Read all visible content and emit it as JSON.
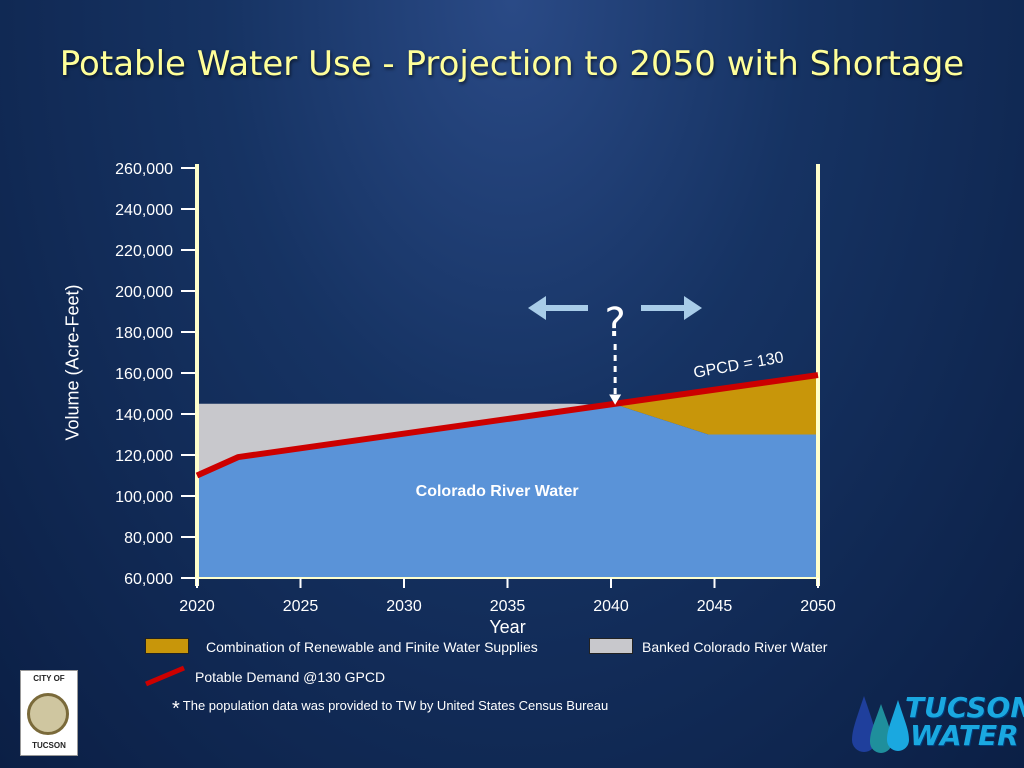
{
  "title": "Potable Water Use - Projection to 2050 with Shortage",
  "colors": {
    "colorado": "#5a93d8",
    "banked": "#c8c8cc",
    "combination": "#c8960a",
    "demand": "#cc0000",
    "axis": "#ffffcc"
  },
  "chart_data": {
    "type": "area",
    "xlabel": "Year",
    "ylabel": "Volume (Acre-Feet)",
    "xlim": [
      2020,
      2050
    ],
    "ylim": [
      60000,
      260000
    ],
    "x_ticks": [
      2020,
      2025,
      2030,
      2035,
      2040,
      2045,
      2050
    ],
    "y_ticks": [
      60000,
      80000,
      100000,
      120000,
      140000,
      160000,
      180000,
      200000,
      220000,
      240000,
      260000
    ],
    "y_tick_labels": [
      "60,000",
      "80,000",
      "100,000",
      "120,000",
      "140,000",
      "160,000",
      "180,000",
      "200,000",
      "220,000",
      "240,000",
      "260,000"
    ],
    "x_tick_labels": [
      "2020",
      "2025",
      "2030",
      "2035",
      "2040",
      "2045",
      "2050"
    ],
    "series": [
      {
        "name": "Colorado River Water",
        "kind": "area",
        "x": [
          2020,
          2022,
          2040.4,
          2044.7,
          2050
        ],
        "y": [
          110000,
          119000,
          144000,
          130000,
          130000
        ]
      },
      {
        "name": "Banked Colorado River Water",
        "kind": "area",
        "x": [
          2020,
          2038.2
        ],
        "y": [
          145000,
          145000
        ]
      },
      {
        "name": "Combination of Renewable and Finite Water Supplies",
        "kind": "area",
        "x": [
          2040.4,
          2050
        ],
        "y": [
          144000,
          159000
        ]
      },
      {
        "name": "Potable Demand @130 GPCD",
        "kind": "line",
        "x": [
          2020,
          2022,
          2050
        ],
        "y": [
          110000,
          119000,
          159000
        ]
      }
    ],
    "annotations": {
      "area_label": "Colorado River Water",
      "line_label": "GPCD = 130",
      "question": "?",
      "question_year": 2040.2
    }
  },
  "legend": {
    "combination": "Combination of Renewable and Finite Water Supplies",
    "banked": "Banked Colorado River Water",
    "demand": "Potable Demand @130 GPCD"
  },
  "footnote": {
    "star": "*",
    "text": "The population data was provided to TW by United States Census Bureau"
  },
  "logos": {
    "city_top": "CITY OF",
    "city_bottom": "TUCSON",
    "brand_top": "TUCSON",
    "brand_bottom": "WATER"
  }
}
